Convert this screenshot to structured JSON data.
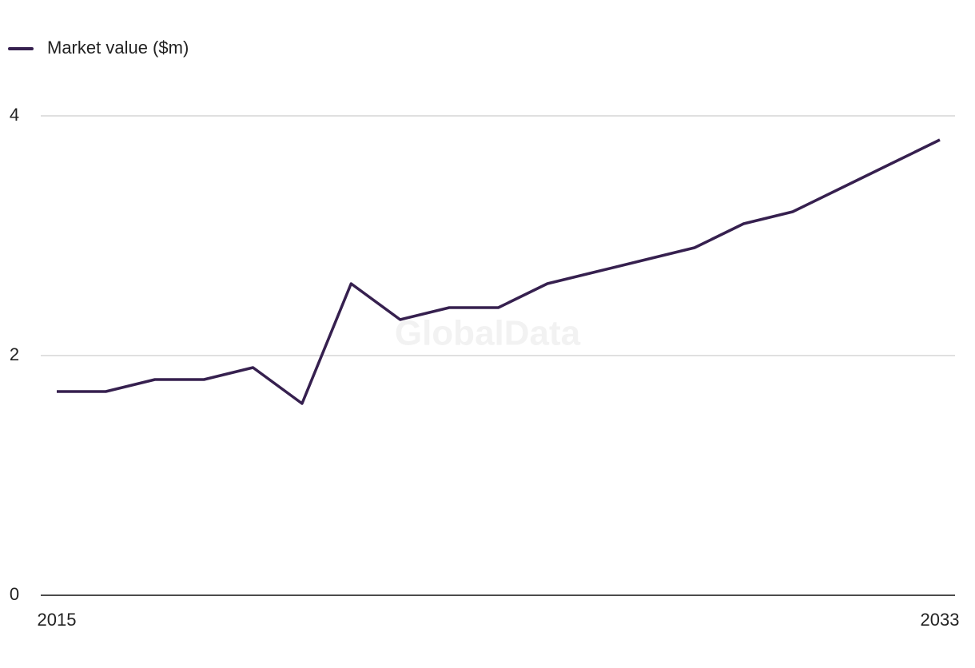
{
  "chart_data": {
    "type": "line",
    "watermark": "GlobalData",
    "x": [
      2015,
      2016,
      2017,
      2018,
      2019,
      2020,
      2021,
      2022,
      2023,
      2024,
      2025,
      2026,
      2027,
      2028,
      2029,
      2030,
      2031,
      2032,
      2033
    ],
    "series": [
      {
        "name": "Market value ($m)",
        "color": "#36204f",
        "values": [
          1.7,
          1.7,
          1.8,
          1.8,
          1.9,
          1.6,
          2.6,
          2.3,
          2.4,
          2.4,
          2.6,
          2.7,
          2.8,
          2.9,
          3.1,
          3.2,
          3.4,
          3.6,
          3.8
        ]
      }
    ],
    "xlim": [
      2015,
      2033
    ],
    "xticks": [
      2015,
      2033
    ],
    "ylim": [
      0,
      4
    ],
    "yticks": [
      0,
      2,
      4
    ],
    "grid": true,
    "legend": "top-left"
  }
}
